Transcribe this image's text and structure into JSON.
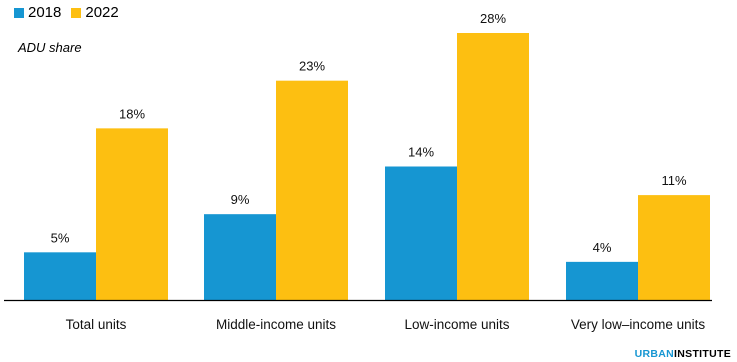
{
  "chart_data": {
    "type": "bar",
    "categories": [
      "Total units",
      "Middle-income units",
      "Low-income units",
      "Very low–income units"
    ],
    "series": [
      {
        "name": "2018",
        "values": [
          5,
          9,
          14,
          4
        ],
        "labels": [
          "5%",
          "9%",
          "14%",
          "4%"
        ],
        "color": "#1696d2"
      },
      {
        "name": "2022",
        "values": [
          18,
          23,
          28,
          11
        ],
        "labels": [
          "18%",
          "23%",
          "28%",
          "11%"
        ],
        "color": "#fdbf11"
      }
    ],
    "title": "",
    "xlabel": "",
    "ylabel": "ADU share",
    "ylim": [
      0,
      28
    ],
    "grid": false,
    "legend": "top-left"
  },
  "branding": {
    "part1": "URBAN",
    "part2": "INSTITUTE"
  }
}
